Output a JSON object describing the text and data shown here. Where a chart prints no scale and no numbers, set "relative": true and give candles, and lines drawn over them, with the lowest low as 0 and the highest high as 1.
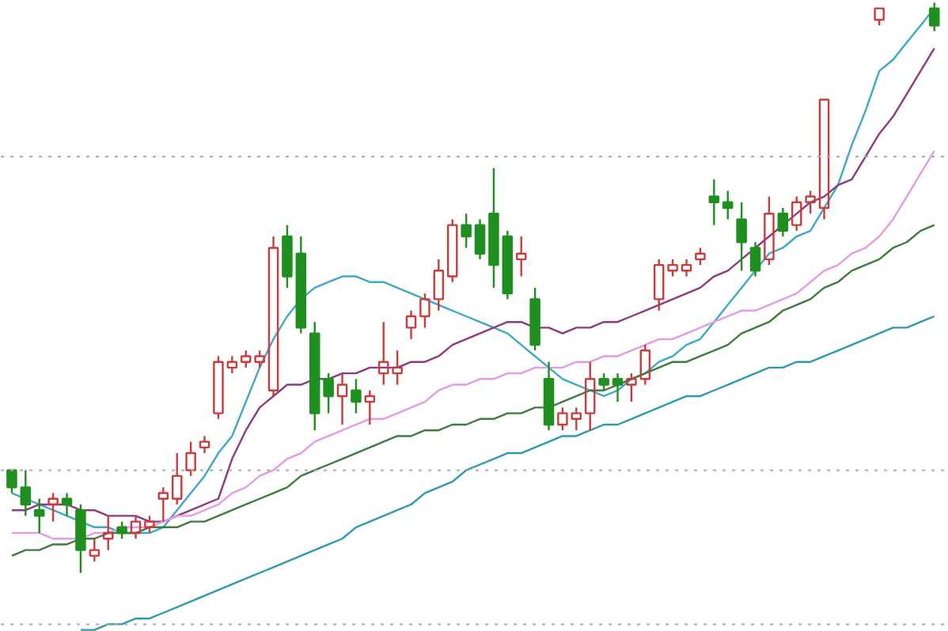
{
  "chart_data": {
    "type": "candlestick",
    "relative": true,
    "categories": [
      null,
      null,
      null,
      null,
      null,
      null,
      null,
      null,
      null,
      null,
      null,
      null,
      null,
      null,
      null,
      null,
      null,
      null,
      null,
      null,
      null,
      null,
      null,
      null,
      null,
      null,
      null,
      null,
      null,
      null,
      null,
      null,
      null,
      null,
      null,
      null,
      null,
      null,
      null,
      null,
      null,
      null,
      null,
      null,
      null,
      null,
      null,
      null,
      null,
      null,
      null,
      null,
      null,
      null,
      null,
      null,
      null,
      null,
      null,
      null,
      null,
      null,
      null,
      null,
      null,
      null,
      null,
      null
    ],
    "ohlc": [
      [
        0.18,
        0.18,
        0.14,
        0.15
      ],
      [
        0.15,
        0.18,
        0.1,
        0.12
      ],
      [
        0.11,
        0.13,
        0.07,
        0.1
      ],
      [
        0.12,
        0.14,
        0.09,
        0.13
      ],
      [
        0.13,
        0.14,
        0.1,
        0.12
      ],
      [
        0.11,
        0.12,
        0.0,
        0.04
      ],
      [
        0.03,
        0.06,
        0.02,
        0.04
      ],
      [
        0.06,
        0.1,
        0.04,
        0.07
      ],
      [
        0.08,
        0.09,
        0.06,
        0.07
      ],
      [
        0.07,
        0.1,
        0.06,
        0.09
      ],
      [
        0.08,
        0.1,
        0.07,
        0.09
      ],
      [
        0.13,
        0.15,
        0.09,
        0.14
      ],
      [
        0.13,
        0.21,
        0.12,
        0.17
      ],
      [
        0.18,
        0.23,
        0.17,
        0.21
      ],
      [
        0.22,
        0.24,
        0.21,
        0.23
      ],
      [
        0.28,
        0.38,
        0.27,
        0.37
      ],
      [
        0.36,
        0.38,
        0.35,
        0.37
      ],
      [
        0.37,
        0.39,
        0.36,
        0.38
      ],
      [
        0.37,
        0.39,
        0.36,
        0.38
      ],
      [
        0.32,
        0.59,
        0.31,
        0.57
      ],
      [
        0.59,
        0.61,
        0.5,
        0.52
      ],
      [
        0.56,
        0.59,
        0.42,
        0.43
      ],
      [
        0.42,
        0.44,
        0.25,
        0.28
      ],
      [
        0.34,
        0.35,
        0.28,
        0.31
      ],
      [
        0.31,
        0.35,
        0.26,
        0.33
      ],
      [
        0.32,
        0.34,
        0.28,
        0.3
      ],
      [
        0.3,
        0.32,
        0.26,
        0.31
      ],
      [
        0.35,
        0.44,
        0.33,
        0.37
      ],
      [
        0.35,
        0.39,
        0.33,
        0.36
      ],
      [
        0.43,
        0.46,
        0.41,
        0.45
      ],
      [
        0.45,
        0.49,
        0.43,
        0.48
      ],
      [
        0.48,
        0.55,
        0.46,
        0.53
      ],
      [
        0.52,
        0.62,
        0.51,
        0.61
      ],
      [
        0.61,
        0.63,
        0.57,
        0.59
      ],
      [
        0.61,
        0.62,
        0.55,
        0.56
      ],
      [
        0.63,
        0.71,
        0.5,
        0.54
      ],
      [
        0.59,
        0.6,
        0.48,
        0.49
      ],
      [
        0.55,
        0.59,
        0.52,
        0.56
      ],
      [
        0.48,
        0.5,
        0.39,
        0.4
      ],
      [
        0.34,
        0.37,
        0.25,
        0.26
      ],
      [
        0.26,
        0.29,
        0.25,
        0.28
      ],
      [
        0.27,
        0.29,
        0.25,
        0.28
      ],
      [
        0.28,
        0.37,
        0.25,
        0.34
      ],
      [
        0.34,
        0.35,
        0.32,
        0.33
      ],
      [
        0.34,
        0.35,
        0.3,
        0.33
      ],
      [
        0.33,
        0.35,
        0.3,
        0.34
      ],
      [
        0.34,
        0.4,
        0.33,
        0.39
      ],
      [
        0.48,
        0.55,
        0.46,
        0.54
      ],
      [
        0.53,
        0.55,
        0.52,
        0.54
      ],
      [
        0.53,
        0.55,
        0.52,
        0.54
      ],
      [
        0.55,
        0.57,
        0.54,
        0.56
      ],
      [
        0.66,
        0.69,
        0.61,
        0.65
      ],
      [
        0.65,
        0.67,
        0.62,
        0.64
      ],
      [
        0.62,
        0.65,
        0.53,
        0.58
      ],
      [
        0.57,
        0.58,
        0.52,
        0.53
      ],
      [
        0.55,
        0.66,
        0.54,
        0.63
      ],
      [
        0.63,
        0.64,
        0.59,
        0.6
      ],
      [
        0.61,
        0.66,
        0.6,
        0.65
      ],
      [
        0.65,
        0.67,
        0.63,
        0.66
      ],
      [
        0.64,
        0.83,
        0.62,
        0.83
      ],
      null,
      null,
      null,
      [
        0.97,
        0.99,
        0.96,
        0.99
      ],
      null,
      null,
      null,
      [
        0.99,
        1.0,
        0.95,
        0.96
      ]
    ],
    "colors": [
      "#1f8f1f",
      "#1f8f1f",
      "#1f8f1f",
      "#cc3b3b",
      "#1f8f1f",
      "#1f8f1f",
      "#cc3b3b",
      "#cc3b3b",
      "#1f8f1f",
      "#cc3b3b",
      "#cc3b3b",
      "#cc3b3b",
      "#cc3b3b",
      "#cc3b3b",
      "#cc3b3b",
      "#cc3b3b",
      "#cc3b3b",
      "#cc3b3b",
      "#cc3b3b",
      "#cc3b3b",
      "#1f8f1f",
      "#1f8f1f",
      "#1f8f1f",
      "#1f8f1f",
      "#cc3b3b",
      "#1f8f1f",
      "#cc3b3b",
      "#cc3b3b",
      "#cc3b3b",
      "#cc3b3b",
      "#cc3b3b",
      "#cc3b3b",
      "#cc3b3b",
      "#1f8f1f",
      "#1f8f1f",
      "#1f8f1f",
      "#1f8f1f",
      "#cc3b3b",
      "#1f8f1f",
      "#1f8f1f",
      "#cc3b3b",
      "#cc3b3b",
      "#cc3b3b",
      "#1f8f1f",
      "#1f8f1f",
      "#cc3b3b",
      "#cc3b3b",
      "#cc3b3b",
      "#cc3b3b",
      "#cc3b3b",
      "#cc3b3b",
      "#1f8f1f",
      "#1f8f1f",
      "#1f8f1f",
      "#1f8f1f",
      "#cc3b3b",
      "#1f8f1f",
      "#cc3b3b",
      "#cc3b3b",
      "#cc3b3b",
      null,
      null,
      null,
      "#cc3b3b",
      null,
      null,
      null,
      "#1f8f1f"
    ],
    "series": [
      {
        "type": "line",
        "color": "#3ea8c8",
        "values": [
          0.14,
          0.13,
          0.12,
          0.11,
          0.1,
          0.09,
          0.08,
          0.08,
          0.07,
          0.07,
          0.07,
          0.08,
          0.11,
          0.14,
          0.17,
          0.21,
          0.24,
          0.3,
          0.36,
          0.41,
          0.45,
          0.48,
          0.5,
          0.51,
          0.52,
          0.52,
          0.51,
          0.51,
          0.5,
          0.49,
          0.48,
          0.47,
          0.46,
          0.45,
          0.44,
          0.43,
          0.42,
          0.4,
          0.38,
          0.36,
          0.34,
          0.33,
          0.32,
          0.31,
          0.32,
          0.34,
          0.35,
          0.37,
          0.38,
          0.4,
          0.41,
          0.44,
          0.47,
          0.5,
          0.53,
          0.56,
          0.57,
          0.59,
          0.6,
          0.64,
          0.68,
          0.75,
          0.81,
          0.88,
          0.9,
          0.93,
          0.96,
          0.99
        ]
      },
      {
        "type": "line",
        "color": "#8e3b7e",
        "values": [
          0.11,
          0.11,
          0.12,
          0.12,
          0.12,
          0.11,
          0.11,
          0.1,
          0.1,
          0.1,
          0.09,
          0.09,
          0.1,
          0.11,
          0.12,
          0.13,
          0.2,
          0.25,
          0.29,
          0.31,
          0.33,
          0.33,
          0.34,
          0.34,
          0.35,
          0.35,
          0.36,
          0.36,
          0.36,
          0.37,
          0.37,
          0.38,
          0.4,
          0.41,
          0.42,
          0.43,
          0.44,
          0.44,
          0.43,
          0.43,
          0.42,
          0.43,
          0.43,
          0.44,
          0.44,
          0.45,
          0.46,
          0.47,
          0.48,
          0.49,
          0.5,
          0.52,
          0.53,
          0.55,
          0.57,
          0.59,
          0.61,
          0.63,
          0.65,
          0.66,
          0.68,
          0.69,
          0.73,
          0.77,
          0.8,
          0.84,
          0.88,
          0.92
        ]
      },
      {
        "type": "line",
        "color": "#e59ae4",
        "values": [
          0.07,
          0.07,
          0.07,
          0.06,
          0.06,
          0.06,
          0.07,
          0.07,
          0.08,
          0.08,
          0.08,
          0.09,
          0.1,
          0.1,
          0.11,
          0.12,
          0.14,
          0.15,
          0.17,
          0.18,
          0.2,
          0.21,
          0.23,
          0.24,
          0.25,
          0.26,
          0.27,
          0.27,
          0.28,
          0.29,
          0.3,
          0.32,
          0.33,
          0.33,
          0.34,
          0.34,
          0.35,
          0.35,
          0.36,
          0.36,
          0.36,
          0.37,
          0.37,
          0.38,
          0.38,
          0.39,
          0.4,
          0.41,
          0.41,
          0.42,
          0.43,
          0.44,
          0.45,
          0.46,
          0.46,
          0.47,
          0.48,
          0.49,
          0.51,
          0.53,
          0.54,
          0.56,
          0.57,
          0.59,
          0.62,
          0.66,
          0.7,
          0.74
        ]
      },
      {
        "type": "line",
        "color": "#3f7a3f",
        "values": [
          0.03,
          0.04,
          0.04,
          0.05,
          0.05,
          0.06,
          0.06,
          0.07,
          0.07,
          0.07,
          0.08,
          0.08,
          0.08,
          0.09,
          0.09,
          0.1,
          0.11,
          0.12,
          0.13,
          0.14,
          0.15,
          0.17,
          0.18,
          0.19,
          0.2,
          0.21,
          0.22,
          0.23,
          0.24,
          0.24,
          0.25,
          0.25,
          0.26,
          0.26,
          0.27,
          0.27,
          0.28,
          0.28,
          0.29,
          0.29,
          0.3,
          0.31,
          0.32,
          0.32,
          0.33,
          0.34,
          0.35,
          0.36,
          0.37,
          0.37,
          0.38,
          0.39,
          0.4,
          0.42,
          0.43,
          0.44,
          0.46,
          0.47,
          0.48,
          0.5,
          0.51,
          0.53,
          0.54,
          0.55,
          0.57,
          0.58,
          0.6,
          0.61
        ]
      },
      {
        "type": "line",
        "color": "#2f9aa8",
        "values": [
          null,
          null,
          null,
          null,
          null,
          -0.1,
          -0.1,
          -0.09,
          -0.09,
          -0.08,
          -0.08,
          -0.07,
          -0.06,
          -0.05,
          -0.04,
          -0.03,
          -0.02,
          -0.01,
          0.0,
          0.01,
          0.02,
          0.03,
          0.04,
          0.05,
          0.06,
          0.08,
          0.09,
          0.1,
          0.11,
          0.12,
          0.14,
          0.15,
          0.16,
          0.18,
          0.19,
          0.2,
          0.21,
          0.21,
          0.22,
          0.23,
          0.24,
          0.24,
          0.25,
          0.26,
          0.26,
          0.27,
          0.28,
          0.29,
          0.3,
          0.31,
          0.31,
          0.32,
          0.33,
          0.34,
          0.35,
          0.36,
          0.36,
          0.37,
          0.37,
          0.38,
          0.39,
          0.4,
          0.41,
          0.42,
          0.43,
          0.43,
          0.44,
          0.45
        ]
      }
    ],
    "ref_lines": [
      {
        "axis": "y",
        "value": 0.73,
        "color": "#aaaaaa",
        "line_style": "dotted"
      },
      {
        "axis": "y",
        "value": 0.18,
        "color": "#aaaaaa",
        "line_style": "dotted"
      },
      {
        "axis": "y",
        "value": -0.09,
        "color": "#aaaaaa",
        "line_style": "dotted"
      }
    ]
  }
}
